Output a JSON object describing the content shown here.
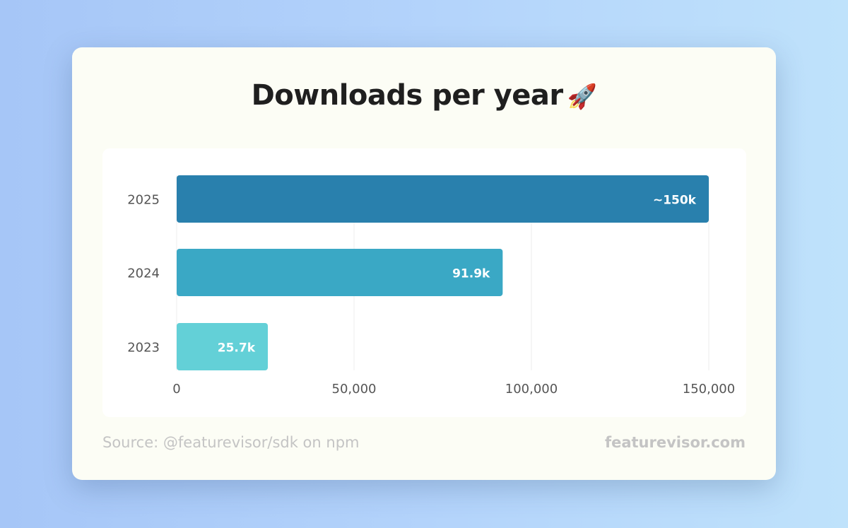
{
  "title": "Downloads per year",
  "title_emoji": "🚀",
  "footer": {
    "source": "Source: @featurevisor/sdk on npm",
    "brand": "featurevisor.com"
  },
  "colors": {
    "bar_2025": "#2980ad",
    "bar_2024": "#3aa8c5",
    "bar_2023": "#63d0d7",
    "grid": "#ececec",
    "tick_text": "#555555",
    "label_text": "#ffffff"
  },
  "chart_data": {
    "type": "bar",
    "orientation": "horizontal",
    "categories": [
      "2025",
      "2024",
      "2023"
    ],
    "values": [
      150000,
      91900,
      25700
    ],
    "data_labels": [
      "~150k",
      "91.9k",
      "25.7k"
    ],
    "x_ticks": [
      "0",
      "50,000",
      "100,000",
      "150,000"
    ],
    "x_tick_values": [
      0,
      50000,
      100000,
      150000
    ],
    "xlim": [
      0,
      150000
    ],
    "grid": true,
    "legend": "none"
  }
}
